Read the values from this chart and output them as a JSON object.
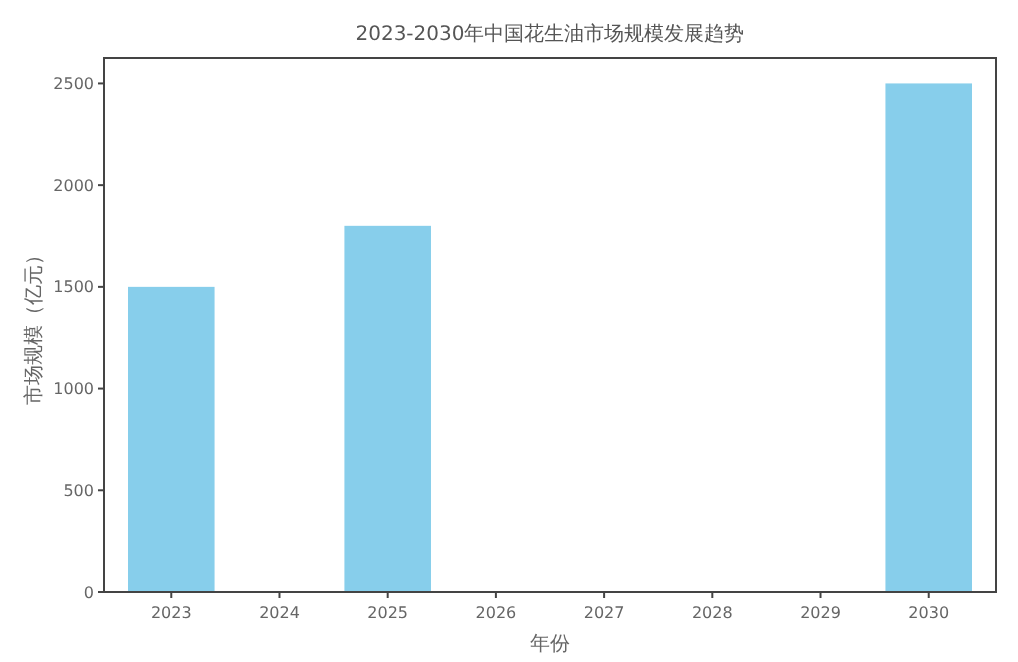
{
  "chart_data": {
    "type": "bar",
    "title": "2023-2030年中国花生油市场规模发展趋势",
    "xlabel": "年份",
    "ylabel": "市场规模（亿元）",
    "categories": [
      "2023",
      "2024",
      "2025",
      "2026",
      "2027",
      "2028",
      "2029",
      "2030"
    ],
    "values": [
      1500,
      null,
      1800,
      null,
      null,
      null,
      null,
      2500
    ],
    "color": "#87ceeb",
    "ylim": [
      0,
      2625
    ],
    "yticks": [
      0,
      500,
      1000,
      1500,
      2000,
      2500
    ],
    "grid": false
  }
}
